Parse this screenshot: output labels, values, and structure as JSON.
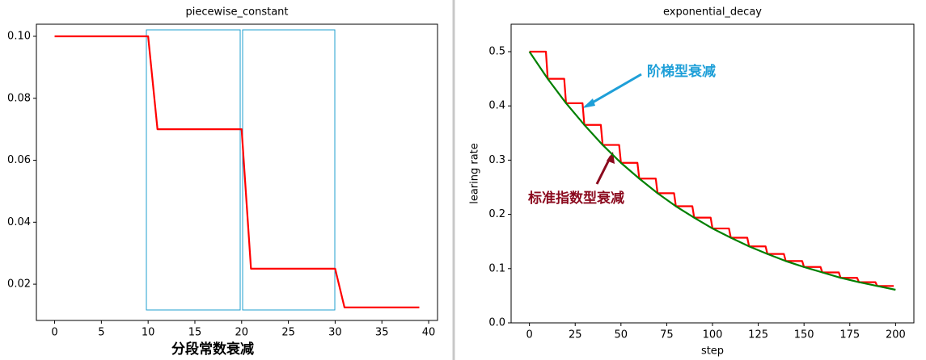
{
  "chart_data": [
    {
      "type": "line",
      "title": "piecewise_constant",
      "annotation": "分段常数衰减",
      "x": [
        0,
        10,
        11,
        20,
        21,
        30,
        31,
        39
      ],
      "values": [
        0.1,
        0.1,
        0.07,
        0.07,
        0.025,
        0.025,
        0.0125,
        0.0125
      ],
      "color": "#ff0000",
      "xlim": [
        -1.95,
        40.95
      ],
      "xticks": [
        0,
        5,
        10,
        15,
        20,
        25,
        30,
        35,
        40
      ],
      "ylim": [
        0.0083,
        0.1039
      ],
      "yticks": [
        0.02,
        0.04,
        0.06,
        0.08,
        {
          "value": 0.1,
          "label": "0.10"
        }
      ]
    },
    {
      "type": "line",
      "title": "exponential_decay",
      "xlabel": "step",
      "ylabel": "learing rate",
      "annotations": [
        "阶梯型衰减",
        "标准指数型衰减"
      ],
      "series": [
        {
          "color": "#ff0000",
          "x": [
            0,
            9,
            10,
            19,
            20,
            29,
            30,
            39,
            40,
            49,
            50,
            59,
            60,
            69,
            70,
            79,
            80,
            89,
            90,
            99,
            100,
            109,
            110,
            119,
            120,
            129,
            130,
            139,
            140,
            149,
            150,
            159,
            160,
            169,
            170,
            179,
            180,
            189,
            190,
            199
          ],
          "values": [
            0.5,
            0.5,
            0.45,
            0.45,
            0.405,
            0.405,
            0.365,
            0.365,
            0.328,
            0.328,
            0.295,
            0.295,
            0.266,
            0.266,
            0.239,
            0.239,
            0.215,
            0.215,
            0.194,
            0.194,
            0.174,
            0.174,
            0.157,
            0.157,
            0.141,
            0.141,
            0.127,
            0.127,
            0.114,
            0.114,
            0.103,
            0.103,
            0.093,
            0.093,
            0.083,
            0.083,
            0.075,
            0.075,
            0.068,
            0.068
          ]
        },
        {
          "color": "#008000",
          "x": [
            0,
            10,
            20,
            30,
            40,
            50,
            60,
            70,
            80,
            90,
            100,
            110,
            120,
            130,
            140,
            150,
            160,
            170,
            180,
            190,
            200
          ],
          "values": [
            0.5,
            0.45,
            0.405,
            0.365,
            0.328,
            0.295,
            0.266,
            0.239,
            0.215,
            0.194,
            0.174,
            0.157,
            0.141,
            0.127,
            0.114,
            0.103,
            0.093,
            0.083,
            0.075,
            0.068,
            0.061
          ]
        }
      ],
      "xlim": [
        -10,
        210
      ],
      "xticks": [
        0,
        25,
        50,
        75,
        100,
        125,
        150,
        175,
        200
      ],
      "ylim": [
        0,
        0.5506
      ],
      "yticks": [
        {
          "value": 0,
          "label": "0.0"
        },
        0.1,
        0.2,
        0.3,
        0.4,
        0.5
      ]
    }
  ]
}
